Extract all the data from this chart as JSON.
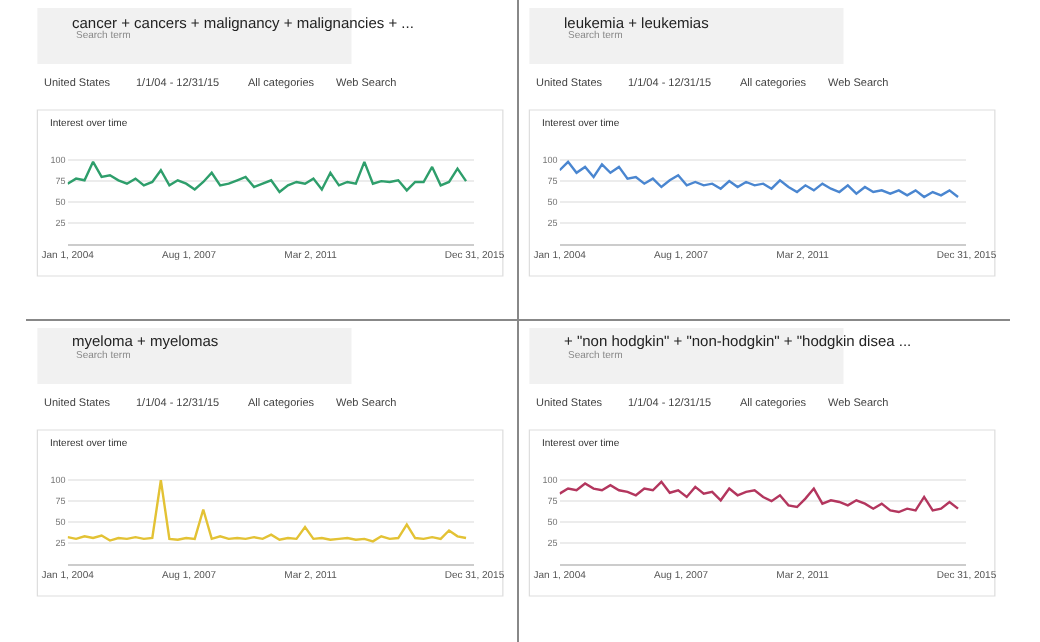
{
  "chart_data": [
    {
      "type": "line",
      "title": "cancer + cancers + malignancy + malignancies + ...",
      "annotations": [
        "Search term",
        "United States",
        "1/1/04 - 12/31/15",
        "All categories",
        "Web Search",
        "Interest over time"
      ],
      "x": [
        "2004-01",
        "2004-04",
        "2004-07",
        "2004-10",
        "2005-01",
        "2005-04",
        "2005-07",
        "2005-10",
        "2006-01",
        "2006-04",
        "2006-07",
        "2006-10",
        "2007-01",
        "2007-04",
        "2007-07",
        "2007-10",
        "2008-01",
        "2008-04",
        "2008-07",
        "2008-10",
        "2009-01",
        "2009-04",
        "2009-07",
        "2009-10",
        "2010-01",
        "2010-04",
        "2010-07",
        "2010-10",
        "2011-01",
        "2011-04",
        "2011-07",
        "2011-10",
        "2012-01",
        "2012-04",
        "2012-07",
        "2012-10",
        "2013-01",
        "2013-04",
        "2013-07",
        "2013-10",
        "2014-01",
        "2014-04",
        "2014-07",
        "2014-10",
        "2015-01",
        "2015-04",
        "2015-07",
        "2015-10"
      ],
      "series": [
        {
          "color": "#2e9e6b",
          "values": [
            72,
            78,
            76,
            98,
            80,
            82,
            76,
            72,
            78,
            70,
            74,
            88,
            70,
            76,
            72,
            65,
            74,
            85,
            70,
            72,
            76,
            80,
            68,
            72,
            76,
            62,
            70,
            74,
            72,
            78,
            65,
            85,
            70,
            74,
            72,
            98,
            72,
            75,
            74,
            76,
            64,
            74,
            74,
            92,
            70,
            74,
            90,
            75
          ]
        }
      ],
      "xlim": [
        "2004-01-01",
        "2015-12-31"
      ],
      "xticks": [
        {
          "value": "2004-01-01",
          "label": "Jan 1, 2004"
        },
        {
          "value": "2007-08-01",
          "label": "Aug 1, 2007"
        },
        {
          "value": "2011-03-02",
          "label": "Mar 2, 2011"
        },
        {
          "value": "2015-12-31",
          "label": "Dec 31, 2015"
        }
      ],
      "ylim": [
        0,
        105
      ],
      "yticks": [
        25,
        50,
        75,
        100
      ],
      "grid": "y",
      "marker": "none"
    },
    {
      "type": "line",
      "title": "leukemia + leukemias",
      "annotations": [
        "Search term",
        "United States",
        "1/1/04 - 12/31/15",
        "All categories",
        "Web Search",
        "Interest over time"
      ],
      "x": [
        "2004-01",
        "2004-04",
        "2004-07",
        "2004-10",
        "2005-01",
        "2005-04",
        "2005-07",
        "2005-10",
        "2006-01",
        "2006-04",
        "2006-07",
        "2006-10",
        "2007-01",
        "2007-04",
        "2007-07",
        "2007-10",
        "2008-01",
        "2008-04",
        "2008-07",
        "2008-10",
        "2009-01",
        "2009-04",
        "2009-07",
        "2009-10",
        "2010-01",
        "2010-04",
        "2010-07",
        "2010-10",
        "2011-01",
        "2011-04",
        "2011-07",
        "2011-10",
        "2012-01",
        "2012-04",
        "2012-07",
        "2012-10",
        "2013-01",
        "2013-04",
        "2013-07",
        "2013-10",
        "2014-01",
        "2014-04",
        "2014-07",
        "2014-10",
        "2015-01",
        "2015-04",
        "2015-07",
        "2015-10"
      ],
      "series": [
        {
          "color": "#4a86d0",
          "values": [
            88,
            98,
            85,
            92,
            80,
            95,
            85,
            92,
            78,
            80,
            72,
            78,
            68,
            76,
            82,
            70,
            74,
            70,
            72,
            66,
            75,
            68,
            74,
            70,
            72,
            66,
            76,
            68,
            62,
            70,
            64,
            72,
            66,
            62,
            70,
            60,
            68,
            62,
            64,
            60,
            64,
            58,
            64,
            56,
            62,
            58,
            64,
            56
          ]
        }
      ],
      "xlim": [
        "2004-01-01",
        "2015-12-31"
      ],
      "xticks": [
        {
          "value": "2004-01-01",
          "label": "Jan 1, 2004"
        },
        {
          "value": "2007-08-01",
          "label": "Aug 1, 2007"
        },
        {
          "value": "2011-03-02",
          "label": "Mar 2, 2011"
        },
        {
          "value": "2015-12-31",
          "label": "Dec 31, 2015"
        }
      ],
      "ylim": [
        0,
        105
      ],
      "yticks": [
        25,
        50,
        75,
        100
      ],
      "grid": "y",
      "marker": "none"
    },
    {
      "type": "line",
      "title": "myeloma + myelomas",
      "annotations": [
        "Search term",
        "United States",
        "1/1/04 - 12/31/15",
        "All categories",
        "Web Search",
        "Interest over time"
      ],
      "x": [
        "2004-01",
        "2004-04",
        "2004-07",
        "2004-10",
        "2005-01",
        "2005-04",
        "2005-07",
        "2005-10",
        "2006-01",
        "2006-04",
        "2006-07",
        "2006-10",
        "2007-01",
        "2007-04",
        "2007-07",
        "2007-10",
        "2008-01",
        "2008-04",
        "2008-07",
        "2008-10",
        "2009-01",
        "2009-04",
        "2009-07",
        "2009-10",
        "2010-01",
        "2010-04",
        "2010-07",
        "2010-10",
        "2011-01",
        "2011-04",
        "2011-07",
        "2011-10",
        "2012-01",
        "2012-04",
        "2012-07",
        "2012-10",
        "2013-01",
        "2013-04",
        "2013-07",
        "2013-10",
        "2014-01",
        "2014-04",
        "2014-07",
        "2014-10",
        "2015-01",
        "2015-04",
        "2015-07",
        "2015-10"
      ],
      "series": [
        {
          "color": "#e3c234",
          "values": [
            32,
            30,
            33,
            31,
            34,
            28,
            31,
            30,
            32,
            30,
            31,
            100,
            30,
            29,
            31,
            30,
            65,
            30,
            33,
            30,
            31,
            30,
            32,
            30,
            35,
            29,
            31,
            30,
            44,
            30,
            31,
            29,
            30,
            31,
            29,
            30,
            27,
            33,
            30,
            31,
            47,
            31,
            30,
            32,
            30,
            40,
            33,
            31
          ]
        }
      ],
      "xlim": [
        "2004-01-01",
        "2015-12-31"
      ],
      "xticks": [
        {
          "value": "2004-01-01",
          "label": "Jan 1, 2004"
        },
        {
          "value": "2007-08-01",
          "label": "Aug 1, 2007"
        },
        {
          "value": "2011-03-02",
          "label": "Mar 2, 2011"
        },
        {
          "value": "2015-12-31",
          "label": "Dec 31, 2015"
        }
      ],
      "ylim": [
        0,
        105
      ],
      "yticks": [
        25,
        50,
        75,
        100
      ],
      "grid": "y",
      "marker": "none"
    },
    {
      "type": "line",
      "title": "+ \"non hodgkin\" + \"non-hodgkin\" + \"hodgkin disea ...",
      "annotations": [
        "Search term",
        "United States",
        "1/1/04 - 12/31/15",
        "All categories",
        "Web Search",
        "Interest over time"
      ],
      "x": [
        "2004-01",
        "2004-04",
        "2004-07",
        "2004-10",
        "2005-01",
        "2005-04",
        "2005-07",
        "2005-10",
        "2006-01",
        "2006-04",
        "2006-07",
        "2006-10",
        "2007-01",
        "2007-04",
        "2007-07",
        "2007-10",
        "2008-01",
        "2008-04",
        "2008-07",
        "2008-10",
        "2009-01",
        "2009-04",
        "2009-07",
        "2009-10",
        "2010-01",
        "2010-04",
        "2010-07",
        "2010-10",
        "2011-01",
        "2011-04",
        "2011-07",
        "2011-10",
        "2012-01",
        "2012-04",
        "2012-07",
        "2012-10",
        "2013-01",
        "2013-04",
        "2013-07",
        "2013-10",
        "2014-01",
        "2014-04",
        "2014-07",
        "2014-10",
        "2015-01",
        "2015-04",
        "2015-07",
        "2015-10"
      ],
      "series": [
        {
          "color": "#b3365e",
          "values": [
            84,
            90,
            88,
            96,
            90,
            88,
            94,
            88,
            86,
            82,
            90,
            88,
            98,
            85,
            88,
            80,
            92,
            84,
            86,
            76,
            90,
            82,
            86,
            88,
            80,
            75,
            82,
            70,
            68,
            78,
            90,
            72,
            76,
            74,
            70,
            76,
            72,
            66,
            72,
            64,
            62,
            66,
            64,
            80,
            64,
            66,
            74,
            66
          ]
        }
      ],
      "xlim": [
        "2004-01-01",
        "2015-12-31"
      ],
      "xticks": [
        {
          "value": "2004-01-01",
          "label": "Jan 1, 2004"
        },
        {
          "value": "2007-08-01",
          "label": "Aug 1, 2007"
        },
        {
          "value": "2011-03-02",
          "label": "Mar 2, 2011"
        },
        {
          "value": "2015-12-31",
          "label": "Dec 31, 2015"
        }
      ],
      "ylim": [
        0,
        105
      ],
      "yticks": [
        25,
        50,
        75,
        100
      ],
      "grid": "y",
      "marker": "none"
    }
  ]
}
